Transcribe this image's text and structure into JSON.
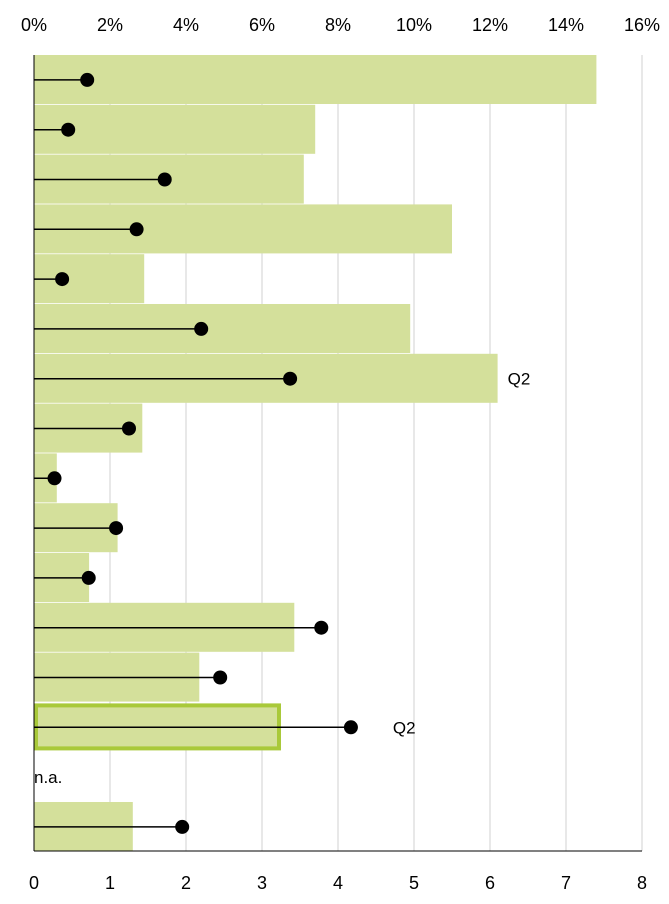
{
  "chart_data": {
    "type": "bar",
    "orientation": "horizontal",
    "title": "",
    "grid": true,
    "colors": {
      "bar_fill": "#d4e09b",
      "bar_outline": "#a9c93a",
      "grid": "#d9d9d9",
      "axis": "#000000",
      "marker": "#000000"
    },
    "top_axis": {
      "label": "",
      "range": [
        0,
        16
      ],
      "ticks": [
        "0%",
        "2%",
        "4%",
        "6%",
        "8%",
        "10%",
        "12%",
        "14%",
        "16%"
      ]
    },
    "bottom_axis": {
      "label": "",
      "range": [
        0,
        8
      ],
      "ticks": [
        "0",
        "1",
        "2",
        "3",
        "4",
        "5",
        "6",
        "7",
        "8"
      ]
    },
    "rows": [
      {
        "bar_pct": 14.8,
        "dot_value": 0.7,
        "annotation": ""
      },
      {
        "bar_pct": 7.4,
        "dot_value": 0.45,
        "annotation": ""
      },
      {
        "bar_pct": 7.1,
        "dot_value": 1.72,
        "annotation": ""
      },
      {
        "bar_pct": 11.0,
        "dot_value": 1.35,
        "annotation": ""
      },
      {
        "bar_pct": 2.9,
        "dot_value": 0.37,
        "annotation": ""
      },
      {
        "bar_pct": 9.9,
        "dot_value": 2.2,
        "annotation": ""
      },
      {
        "bar_pct": 12.2,
        "dot_value": 3.37,
        "annotation": "Q2"
      },
      {
        "bar_pct": 2.85,
        "dot_value": 1.25,
        "annotation": ""
      },
      {
        "bar_pct": 0.6,
        "dot_value": 0.27,
        "annotation": ""
      },
      {
        "bar_pct": 2.2,
        "dot_value": 1.08,
        "annotation": ""
      },
      {
        "bar_pct": 1.45,
        "dot_value": 0.72,
        "annotation": ""
      },
      {
        "bar_pct": 6.85,
        "dot_value": 3.78,
        "annotation": ""
      },
      {
        "bar_pct": 4.35,
        "dot_value": 2.45,
        "annotation": ""
      },
      {
        "bar_pct": 6.5,
        "dot_value": 4.17,
        "annotation": "Q2",
        "outlined": true
      },
      {
        "bar_pct": null,
        "dot_value": null,
        "annotation": "n.a."
      },
      {
        "bar_pct": 2.6,
        "dot_value": 1.95,
        "annotation": ""
      }
    ]
  }
}
